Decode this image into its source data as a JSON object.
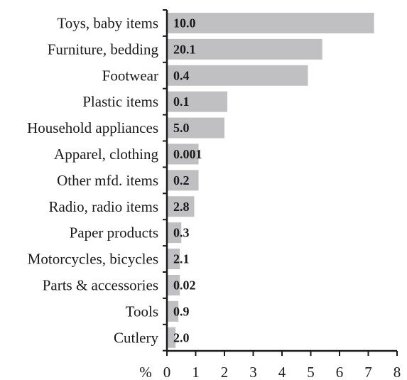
{
  "chart_data": {
    "type": "bar",
    "orientation": "horizontal",
    "categories": [
      "Toys, baby items",
      "Furniture, bedding",
      "Footwear",
      "Plastic items",
      "Household appliances",
      "Apparel, clothing",
      "Other mfd. items",
      "Radio, radio items",
      "Paper products",
      "Motorcycles, bicycles",
      "Parts & accessories",
      "Tools",
      "Cutlery"
    ],
    "values": [
      7.2,
      5.4,
      4.9,
      2.1,
      2.0,
      1.1,
      1.1,
      0.95,
      0.5,
      0.45,
      0.45,
      0.4,
      0.3
    ],
    "data_labels": [
      "10.0",
      "20.1",
      "0.4",
      "0.1",
      "5.0",
      "0.001",
      "0.2",
      "2.8",
      "0.3",
      "2.1",
      "0.02",
      "0.9",
      "2.0"
    ],
    "xlim": [
      0,
      8
    ],
    "xticks": [
      "0",
      "1",
      "2",
      "3",
      "4",
      "5",
      "6",
      "7",
      "8"
    ],
    "xlabel": "%",
    "bar_color": "#c0c0c2",
    "grid": false
  }
}
